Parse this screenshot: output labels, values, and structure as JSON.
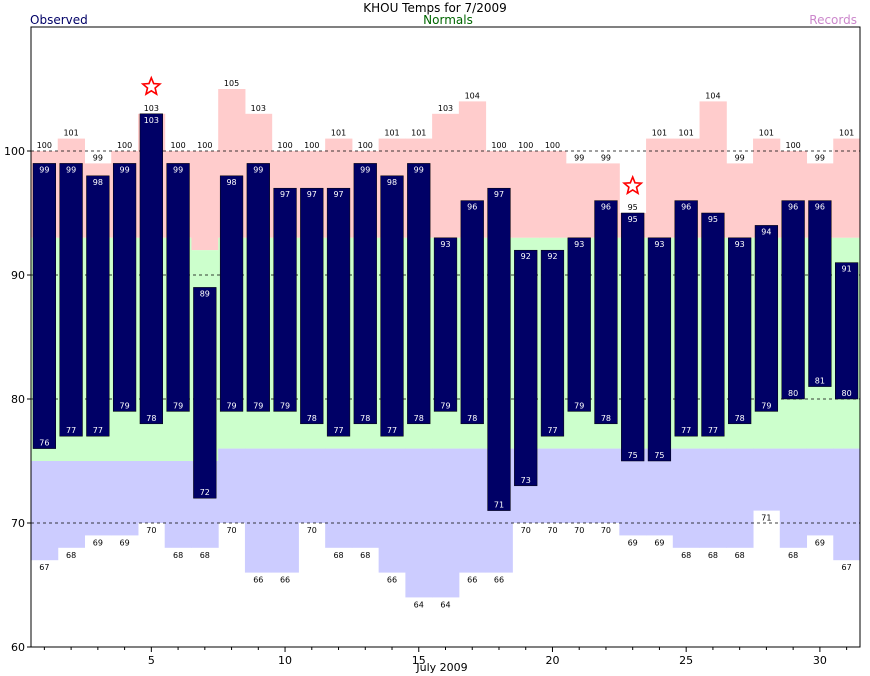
{
  "chart_data": {
    "type": "bar",
    "title": "KHOU Temps for 7/2009",
    "legend": {
      "observed": "Observed",
      "normals": "Normals",
      "records": "Records",
      "placement": "top"
    },
    "xlabel": "July 2009",
    "ylim": [
      60,
      110
    ],
    "yticks": [
      60,
      70,
      80,
      90,
      100
    ],
    "xticks": [
      5,
      10,
      15,
      20,
      25,
      30
    ],
    "grid": "dashed at 70, 80, 90, 100",
    "days": [
      1,
      2,
      3,
      4,
      5,
      6,
      7,
      8,
      9,
      10,
      11,
      12,
      13,
      14,
      15,
      16,
      17,
      18,
      19,
      20,
      21,
      22,
      23,
      24,
      25,
      26,
      27,
      28,
      29,
      30,
      31
    ],
    "series": [
      {
        "name": "Observed high",
        "values": [
          99,
          99,
          98,
          99,
          103,
          99,
          89,
          98,
          99,
          97,
          97,
          97,
          99,
          98,
          99,
          93,
          96,
          97,
          92,
          92,
          93,
          96,
          95,
          93,
          96,
          95,
          93,
          94,
          96,
          96,
          91
        ]
      },
      {
        "name": "Observed low",
        "values": [
          76,
          77,
          77,
          79,
          78,
          79,
          72,
          79,
          79,
          79,
          78,
          77,
          78,
          77,
          78,
          79,
          78,
          71,
          73,
          77,
          79,
          78,
          75,
          75,
          77,
          77,
          78,
          79,
          80,
          81,
          80
        ]
      },
      {
        "name": "Normal high",
        "values": [
          93,
          93,
          93,
          93,
          93,
          93,
          92,
          93,
          93,
          93,
          93,
          93,
          93,
          93,
          93,
          93,
          93,
          93,
          93,
          93,
          93,
          93,
          93,
          93,
          93,
          93,
          93,
          93,
          93,
          93,
          93
        ]
      },
      {
        "name": "Normal low",
        "values": [
          75,
          75,
          75,
          75,
          75,
          75,
          75,
          76,
          76,
          76,
          76,
          76,
          76,
          76,
          76,
          76,
          76,
          76,
          76,
          76,
          76,
          76,
          76,
          76,
          76,
          76,
          76,
          76,
          76,
          76,
          76
        ]
      },
      {
        "name": "Record high",
        "values": [
          100,
          101,
          99,
          100,
          103,
          100,
          100,
          105,
          103,
          100,
          100,
          101,
          100,
          101,
          101,
          103,
          104,
          100,
          100,
          100,
          99,
          99,
          95,
          101,
          101,
          104,
          99,
          101,
          100,
          99,
          101
        ]
      },
      {
        "name": "Record low",
        "values": [
          67,
          68,
          69,
          69,
          70,
          68,
          68,
          70,
          66,
          66,
          70,
          68,
          68,
          66,
          64,
          64,
          66,
          66,
          70,
          70,
          70,
          70,
          69,
          69,
          68,
          68,
          68,
          71,
          68,
          69,
          67
        ]
      }
    ],
    "record_markers": [
      5,
      23
    ],
    "colors": {
      "observed": "#000066",
      "record_high_fill": "#ffcccc",
      "normal_fill": "#ccffcc",
      "record_low_fill": "#ccccff",
      "observed_label": "#000066",
      "normals_label": "#006600",
      "records_label": "#cc88cc",
      "star": "#ff0000"
    }
  }
}
